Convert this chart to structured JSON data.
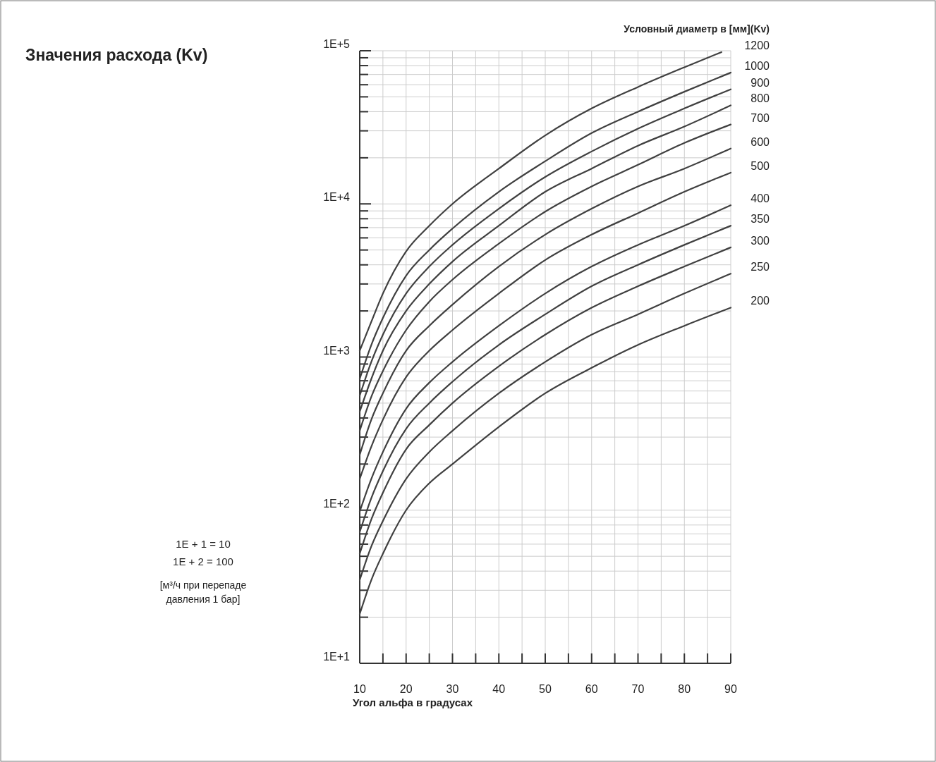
{
  "chart_data": {
    "type": "line",
    "title": "Значения расхода (Kv)",
    "xlabel": "Угол альфа в градусах",
    "legend_title": "Условный диаметр в [мм](Kv)",
    "annotations": [
      "1E + 1 = 10",
      "1E + 2 = 100",
      "[м³/ч при перепаде давления 1 бар]"
    ],
    "x": [
      10,
      12.5,
      15,
      20,
      25,
      30,
      40,
      50,
      60,
      70,
      80,
      90
    ],
    "series": [
      {
        "name": "200",
        "color": "#404040",
        "values": [
          21,
          35,
          52,
          100,
          150,
          200,
          350,
          580,
          850,
          1200,
          1600,
          2100
        ]
      },
      {
        "name": "250",
        "color": "#404040",
        "values": [
          35,
          58,
          85,
          160,
          240,
          330,
          580,
          930,
          1400,
          1900,
          2600,
          3500
        ]
      },
      {
        "name": "300",
        "color": "#404040",
        "values": [
          52,
          87,
          130,
          250,
          360,
          500,
          870,
          1400,
          2100,
          2900,
          3900,
          5200
        ]
      },
      {
        "name": "350",
        "color": "#404040",
        "values": [
          72,
          120,
          180,
          340,
          500,
          690,
          1200,
          1900,
          2900,
          4000,
          5400,
          7200
        ]
      },
      {
        "name": "400",
        "color": "#404040",
        "values": [
          98,
          160,
          240,
          460,
          680,
          930,
          1600,
          2600,
          3900,
          5400,
          7200,
          9800
        ]
      },
      {
        "name": "500",
        "color": "#404040",
        "values": [
          160,
          260,
          390,
          740,
          1100,
          1500,
          2600,
          4300,
          6300,
          8700,
          12000,
          16000
        ]
      },
      {
        "name": "600",
        "color": "#404040",
        "values": [
          230,
          390,
          580,
          1100,
          1600,
          2200,
          3900,
          6300,
          9300,
          13000,
          17000,
          23000
        ]
      },
      {
        "name": "700",
        "color": "#404040",
        "values": [
          330,
          550,
          810,
          1500,
          2300,
          3200,
          5500,
          8900,
          13000,
          18000,
          25000,
          33000
        ]
      },
      {
        "name": "800",
        "color": "#404040",
        "values": [
          440,
          720,
          1100,
          2000,
          3000,
          4200,
          7200,
          12000,
          17000,
          24000,
          32000,
          44000
        ]
      },
      {
        "name": "900",
        "color": "#404040",
        "values": [
          560,
          930,
          1400,
          2600,
          3900,
          5400,
          9300,
          15000,
          22000,
          31000,
          42000,
          56000
        ]
      },
      {
        "name": "1000",
        "color": "#404040",
        "values": [
          720,
          1200,
          1800,
          3400,
          5000,
          6900,
          12000,
          19000,
          29000,
          40000,
          54000,
          72000
        ]
      },
      {
        "name": "1200",
        "color": "#404040",
        "x": [
          10,
          12.5,
          15,
          20,
          25,
          30,
          40,
          50,
          60,
          70,
          80,
          88
        ],
        "values": [
          1100,
          1700,
          2600,
          4900,
          7200,
          10000,
          17000,
          28000,
          42000,
          58000,
          78000,
          98000
        ]
      }
    ],
    "xlim": [
      10,
      90
    ],
    "ylim": [
      10,
      100000
    ],
    "log": "y",
    "grid": true,
    "line_style": "solid",
    "xticks": [
      10,
      {
        "value": 15,
        "label": null
      },
      20,
      {
        "value": 25,
        "label": null
      },
      30,
      {
        "value": 35,
        "label": null
      },
      40,
      {
        "value": 45,
        "label": null
      },
      50,
      {
        "value": 55,
        "label": null
      },
      60,
      {
        "value": 65,
        "label": null
      },
      70,
      {
        "value": 75,
        "label": null
      },
      80,
      {
        "value": 85,
        "label": null
      },
      90
    ],
    "yticks": [
      {
        "value": 10,
        "label": "1E+1"
      },
      {
        "value": 20,
        "label": null
      },
      {
        "value": 30,
        "label": null
      },
      {
        "value": 40,
        "label": null
      },
      {
        "value": 50,
        "label": null
      },
      {
        "value": 60,
        "label": null
      },
      {
        "value": 70,
        "label": null
      },
      {
        "value": 80,
        "label": null
      },
      {
        "value": 90,
        "label": null
      },
      {
        "value": 100,
        "label": "1E+2"
      },
      {
        "value": 200,
        "label": null
      },
      {
        "value": 300,
        "label": null
      },
      {
        "value": 400,
        "label": null
      },
      {
        "value": 500,
        "label": null
      },
      {
        "value": 600,
        "label": null
      },
      {
        "value": 700,
        "label": null
      },
      {
        "value": 800,
        "label": null
      },
      {
        "value": 900,
        "label": null
      },
      {
        "value": 1000,
        "label": "1E+3"
      },
      {
        "value": 2000,
        "label": null
      },
      {
        "value": 3000,
        "label": null
      },
      {
        "value": 4000,
        "label": null
      },
      {
        "value": 5000,
        "label": null
      },
      {
        "value": 6000,
        "label": null
      },
      {
        "value": 7000,
        "label": null
      },
      {
        "value": 8000,
        "label": null
      },
      {
        "value": 9000,
        "label": null
      },
      {
        "value": 10000,
        "label": "1E+4"
      },
      {
        "value": 20000,
        "label": null
      },
      {
        "value": 30000,
        "label": null
      },
      {
        "value": 40000,
        "label": null
      },
      {
        "value": 50000,
        "label": null
      },
      {
        "value": 60000,
        "label": null
      },
      {
        "value": 70000,
        "label": null
      },
      {
        "value": 80000,
        "label": null
      },
      {
        "value": 90000,
        "label": null
      },
      {
        "value": 100000,
        "label": "1E+5"
      }
    ]
  }
}
